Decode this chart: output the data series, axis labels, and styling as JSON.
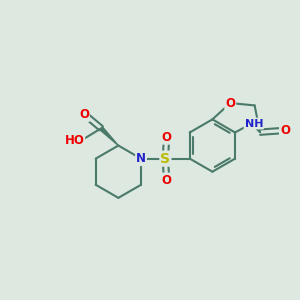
{
  "background_color": "#dde8e0",
  "bond_color": "#4a7a6a",
  "atom_colors": {
    "O": "#ee0000",
    "N": "#2222cc",
    "S": "#bbbb00",
    "H": "#777777",
    "C": "#4a7a6a"
  },
  "font_size": 8.5,
  "figsize": [
    3.0,
    3.0
  ],
  "dpi": 100
}
